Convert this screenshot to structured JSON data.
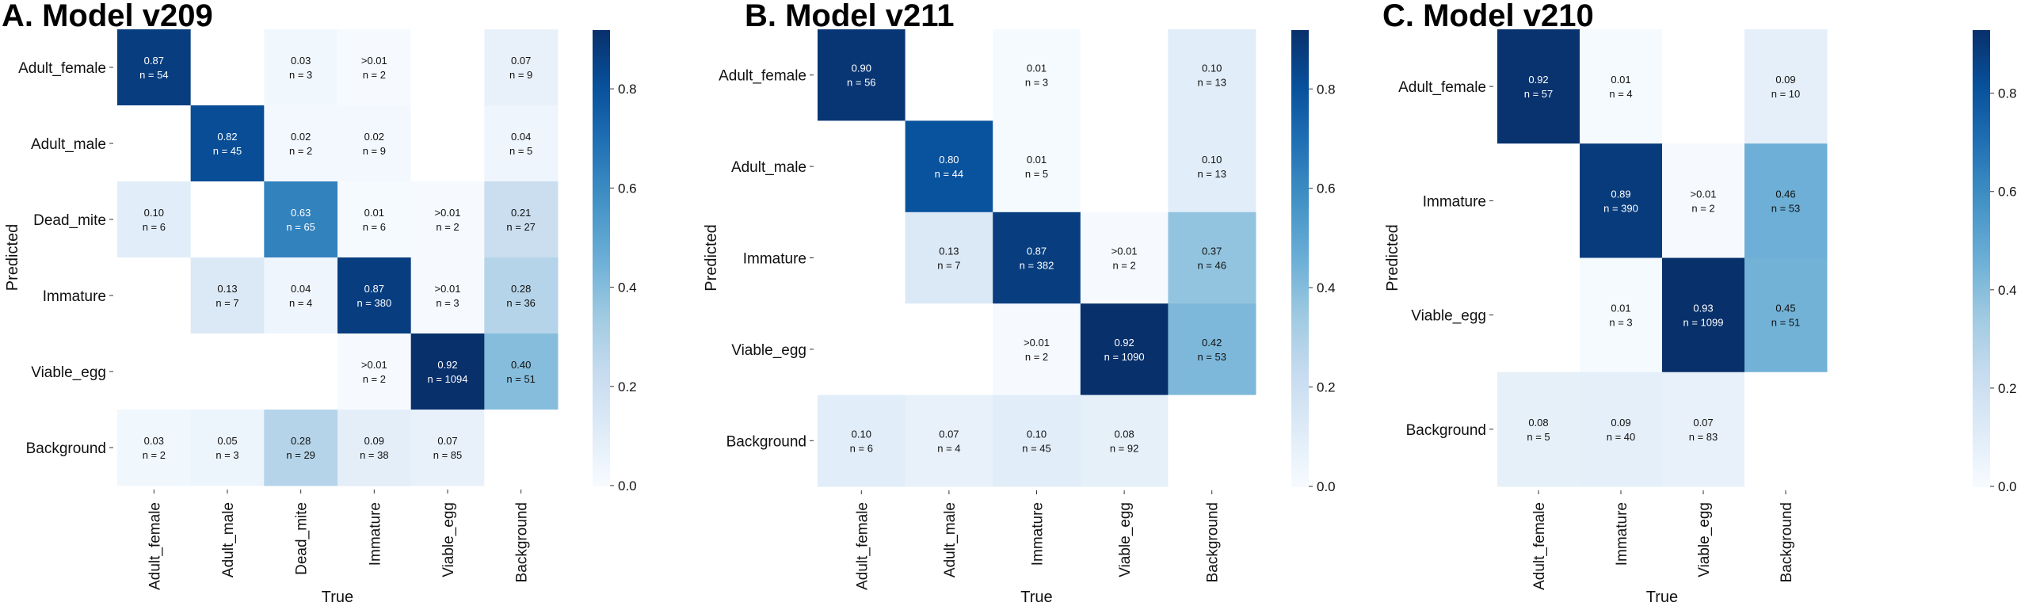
{
  "colors": {
    "low": "#f7fbff",
    "high": "#08306b",
    "text_dark": "#111111",
    "text_light": "#ffffff"
  },
  "chart_data": [
    {
      "type": "heatmap",
      "title": "A. Model v209",
      "xlabel": "True",
      "ylabel": "Predicted",
      "x_categories": [
        "Adult_female",
        "Adult_male",
        "Dead_mite",
        "Immature",
        "Viable_egg",
        "Background"
      ],
      "y_categories": [
        "Adult_female",
        "Adult_male",
        "Dead_mite",
        "Immature",
        "Viable_egg",
        "Background"
      ],
      "colorbar": {
        "range": [
          0,
          0.92
        ],
        "ticks": [
          "0.0",
          "0.2",
          "0.4",
          "0.6",
          "0.8"
        ]
      },
      "cells": [
        [
          "0.87",
          "",
          "0.03",
          ">0.01",
          "",
          "0.07"
        ],
        [
          "",
          "0.82",
          "0.02",
          "0.02",
          "",
          "0.04"
        ],
        [
          "0.10",
          "",
          "0.63",
          "0.01",
          ">0.01",
          "0.21"
        ],
        [
          "",
          "0.13",
          "0.04",
          "0.87",
          ">0.01",
          "0.28"
        ],
        [
          "",
          "",
          "",
          ">0.01",
          "0.92",
          "0.40"
        ],
        [
          "0.03",
          "0.05",
          "0.28",
          "0.09",
          "0.07",
          ""
        ]
      ],
      "counts": [
        [
          "n = 54",
          "",
          "n = 3",
          "n = 2",
          "",
          "n = 9"
        ],
        [
          "",
          "n = 45",
          "n = 2",
          "n = 9",
          "",
          "n = 5"
        ],
        [
          "n = 6",
          "",
          "n = 65",
          "n = 6",
          "n = 2",
          "n = 27"
        ],
        [
          "",
          "n = 7",
          "n = 4",
          "n = 380",
          "n = 3",
          "n = 36"
        ],
        [
          "",
          "",
          "",
          "n = 2",
          "n = 1094",
          "n = 51"
        ],
        [
          "n = 2",
          "n = 3",
          "n = 29",
          "n = 38",
          "n = 85",
          ""
        ]
      ]
    },
    {
      "type": "heatmap",
      "title": "B. Model v211",
      "xlabel": "True",
      "ylabel": "Predicted",
      "x_categories": [
        "Adult_female",
        "Adult_male",
        "Immature",
        "Viable_egg",
        "Background"
      ],
      "y_categories": [
        "Adult_female",
        "Adult_male",
        "Immature",
        "Viable_egg",
        "Background"
      ],
      "colorbar": {
        "range": [
          0,
          0.92
        ],
        "ticks": [
          "0.0",
          "0.2",
          "0.4",
          "0.6",
          "0.8"
        ]
      },
      "cells": [
        [
          "0.90",
          "",
          "0.01",
          "",
          "0.10"
        ],
        [
          "",
          "0.80",
          "0.01",
          "",
          "0.10"
        ],
        [
          "",
          "0.13",
          "0.87",
          ">0.01",
          "0.37"
        ],
        [
          "",
          "",
          ">0.01",
          "0.92",
          "0.42"
        ],
        [
          "0.10",
          "0.07",
          "0.10",
          "0.08",
          ""
        ]
      ],
      "counts": [
        [
          "n = 56",
          "",
          "n = 3",
          "",
          "n = 13"
        ],
        [
          "",
          "n = 44",
          "n = 5",
          "",
          "n = 13"
        ],
        [
          "",
          "n = 7",
          "n = 382",
          "n = 2",
          "n = 46"
        ],
        [
          "",
          "",
          "n = 2",
          "n = 1090",
          "n = 53"
        ],
        [
          "n = 6",
          "n = 4",
          "n = 45",
          "n = 92",
          ""
        ]
      ]
    },
    {
      "type": "heatmap",
      "title": "C. Model v210",
      "xlabel": "True",
      "ylabel": "Predicted",
      "x_categories": [
        "Adult_female",
        "Immature",
        "Viable_egg",
        "Background"
      ],
      "y_categories": [
        "Adult_female",
        "Immature",
        "Viable_egg",
        "Background"
      ],
      "colorbar": {
        "range": [
          0,
          0.93
        ],
        "ticks": [
          "0.0",
          "0.2",
          "0.4",
          "0.6",
          "0.8"
        ]
      },
      "cells": [
        [
          "0.92",
          "0.01",
          "",
          "0.09"
        ],
        [
          "",
          "0.89",
          ">0.01",
          "0.46"
        ],
        [
          "",
          "0.01",
          "0.93",
          "0.45"
        ],
        [
          "0.08",
          "0.09",
          "0.07",
          ""
        ]
      ],
      "counts": [
        [
          "n = 57",
          "n = 4",
          "",
          "n = 10"
        ],
        [
          "",
          "n = 390",
          "n = 2",
          "n = 53"
        ],
        [
          "",
          "n = 3",
          "n = 1099",
          "n = 51"
        ],
        [
          "n = 5",
          "n = 40",
          "n = 83",
          ""
        ]
      ]
    }
  ]
}
